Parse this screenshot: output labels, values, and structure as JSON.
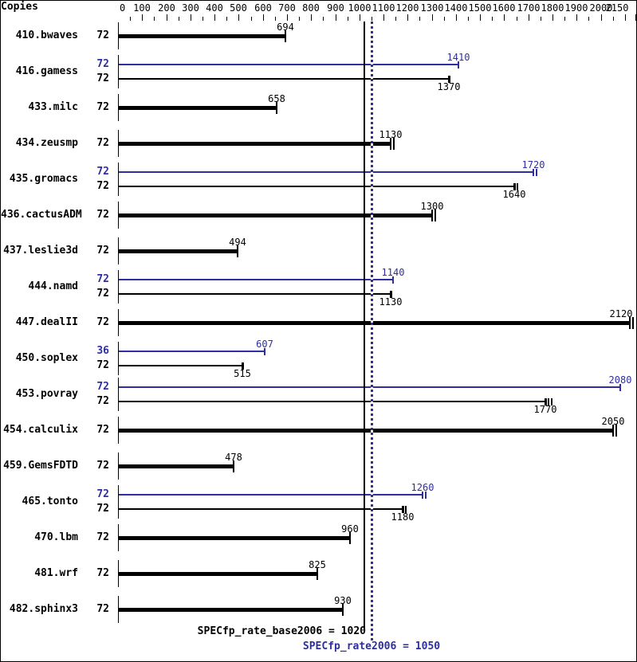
{
  "header": {
    "copies_label": "Copies"
  },
  "axis": {
    "min": 0,
    "max": 2150,
    "minor_step": 50,
    "labels": [
      "0",
      "100",
      "200",
      "300",
      "400",
      "500",
      "600",
      "700",
      "800",
      "900",
      "1000",
      "1100",
      "1200",
      "1300",
      "1400",
      "1500",
      "1600",
      "1700",
      "1800",
      "1900",
      "2000",
      "2150"
    ]
  },
  "colors": {
    "base": "#000000",
    "peak": "#2e2ea2",
    "background": "#ffffff"
  },
  "chart_data": {
    "type": "bar",
    "orientation": "horizontal",
    "xlim": [
      0,
      2150
    ],
    "legend": "black = base, blue = peak",
    "benchmarks": [
      {
        "name": "410.bwaves",
        "bars": [
          {
            "kind": "base",
            "copies": 72,
            "value": 694,
            "end_ticks": 1
          }
        ]
      },
      {
        "name": "416.gamess",
        "bars": [
          {
            "kind": "peak",
            "copies": 72,
            "value": 1410,
            "end_ticks": 1
          },
          {
            "kind": "base",
            "copies": 72,
            "value": 1370,
            "end_ticks": 1
          }
        ]
      },
      {
        "name": "433.milc",
        "bars": [
          {
            "kind": "base",
            "copies": 72,
            "value": 658,
            "end_ticks": 1
          }
        ]
      },
      {
        "name": "434.zeusmp",
        "bars": [
          {
            "kind": "base",
            "copies": 72,
            "value": 1130,
            "end_ticks": 2
          }
        ]
      },
      {
        "name": "435.gromacs",
        "bars": [
          {
            "kind": "peak",
            "copies": 72,
            "value": 1720,
            "end_ticks": 2
          },
          {
            "kind": "base",
            "copies": 72,
            "value": 1640,
            "end_ticks": 2
          }
        ]
      },
      {
        "name": "436.cactusADM",
        "bars": [
          {
            "kind": "base",
            "copies": 72,
            "value": 1300,
            "end_ticks": 2
          }
        ]
      },
      {
        "name": "437.leslie3d",
        "bars": [
          {
            "kind": "base",
            "copies": 72,
            "value": 494,
            "end_ticks": 1
          }
        ]
      },
      {
        "name": "444.namd",
        "bars": [
          {
            "kind": "peak",
            "copies": 72,
            "value": 1140,
            "end_ticks": 1
          },
          {
            "kind": "base",
            "copies": 72,
            "value": 1130,
            "end_ticks": 1
          }
        ]
      },
      {
        "name": "447.dealII",
        "bars": [
          {
            "kind": "base",
            "copies": 72,
            "value": 2120,
            "end_ticks": 2
          }
        ]
      },
      {
        "name": "450.soplex",
        "bars": [
          {
            "kind": "peak",
            "copies": 36,
            "value": 607,
            "end_ticks": 1
          },
          {
            "kind": "base",
            "copies": 72,
            "value": 515,
            "end_ticks": 1
          }
        ]
      },
      {
        "name": "453.povray",
        "bars": [
          {
            "kind": "peak",
            "copies": 72,
            "value": 2080,
            "end_ticks": 1
          },
          {
            "kind": "base",
            "copies": 72,
            "value": 1770,
            "end_ticks": 3
          }
        ]
      },
      {
        "name": "454.calculix",
        "bars": [
          {
            "kind": "base",
            "copies": 72,
            "value": 2050,
            "end_ticks": 2
          }
        ]
      },
      {
        "name": "459.GemsFDTD",
        "bars": [
          {
            "kind": "base",
            "copies": 72,
            "value": 478,
            "end_ticks": 1
          }
        ]
      },
      {
        "name": "465.tonto",
        "bars": [
          {
            "kind": "peak",
            "copies": 72,
            "value": 1260,
            "end_ticks": 2
          },
          {
            "kind": "base",
            "copies": 72,
            "value": 1180,
            "end_ticks": 2
          }
        ]
      },
      {
        "name": "470.lbm",
        "bars": [
          {
            "kind": "base",
            "copies": 72,
            "value": 960,
            "end_ticks": 1
          }
        ]
      },
      {
        "name": "481.wrf",
        "bars": [
          {
            "kind": "base",
            "copies": 72,
            "value": 825,
            "end_ticks": 1
          }
        ]
      },
      {
        "name": "482.sphinx3",
        "bars": [
          {
            "kind": "base",
            "copies": 72,
            "value": 930,
            "end_ticks": 1
          }
        ]
      }
    ],
    "reference_lines": [
      {
        "kind": "base",
        "metric": "SPECfp_rate_base2006",
        "value": 1020,
        "label": "SPECfp_rate_base2006 = 1020",
        "style": "solid"
      },
      {
        "kind": "peak",
        "metric": "SPECfp_rate2006",
        "value": 1050,
        "label": "SPECfp_rate2006 = 1050",
        "style": "dotted"
      }
    ]
  }
}
